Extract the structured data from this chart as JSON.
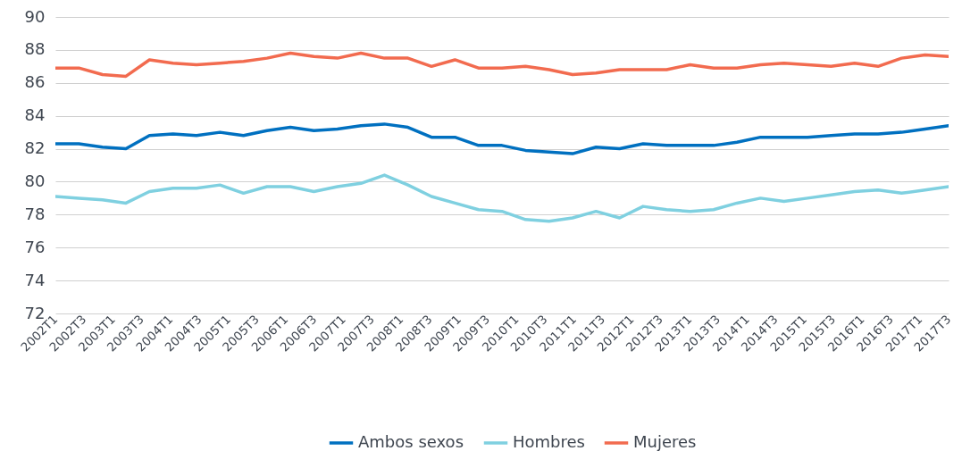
{
  "chart_data": {
    "type": "line",
    "xlim": [
      "2002-01",
      "2017-07"
    ],
    "xticks": [
      {
        "value": "2002-01",
        "label": "2002T1"
      },
      {
        "value": "2002-07",
        "label": "2002T3"
      },
      {
        "value": "2003-01",
        "label": "2003T1"
      },
      {
        "value": "2003-07",
        "label": "2003T3"
      },
      {
        "value": "2004-01",
        "label": "2004T1"
      },
      {
        "value": "2004-07",
        "label": "2004T3"
      },
      {
        "value": "2005-01",
        "label": "2005T1"
      },
      {
        "value": "2005-07",
        "label": "2005T3"
      },
      {
        "value": "2006-01",
        "label": "2006T1"
      },
      {
        "value": "2006-07",
        "label": "2006T3"
      },
      {
        "value": "2007-01",
        "label": "2007T1"
      },
      {
        "value": "2007-07",
        "label": "2007T3"
      },
      {
        "value": "2008-01",
        "label": "2008T1"
      },
      {
        "value": "2008-07",
        "label": "2008T3"
      },
      {
        "value": "2009-01",
        "label": "2009T1"
      },
      {
        "value": "2009-07",
        "label": "2009T3"
      },
      {
        "value": "2010-01",
        "label": "2010T1"
      },
      {
        "value": "2010-07",
        "label": "2010T3"
      },
      {
        "value": "2011-01",
        "label": "2011T1"
      },
      {
        "value": "2011-07",
        "label": "2011T3"
      },
      {
        "value": "2012-01",
        "label": "2012T1"
      },
      {
        "value": "2012-07",
        "label": "2012T3"
      },
      {
        "value": "2013-01",
        "label": "2013T1"
      },
      {
        "value": "2013-07",
        "label": "2013T3"
      },
      {
        "value": "2014-01",
        "label": "2014T1"
      },
      {
        "value": "2014-07",
        "label": "2014T3"
      },
      {
        "value": "2015-01",
        "label": "2015T1"
      },
      {
        "value": "2015-07",
        "label": "2015T3"
      },
      {
        "value": "2016-01",
        "label": "2016T1"
      },
      {
        "value": "2016-07",
        "label": "2016T3"
      },
      {
        "value": "2017-01",
        "label": "2017T1"
      },
      {
        "value": "2017-07",
        "label": "2017T3"
      }
    ],
    "x": [
      "2002-01-01",
      "2002-05-30",
      "2002-10-26",
      "2003-03-24",
      "2003-08-20",
      "2004-01-16",
      "2004-06-13",
      "2004-11-09",
      "2005-04-07",
      "2005-09-03",
      "2006-01-29",
      "2006-06-27",
      "2006-11-23",
      "2007-04-21",
      "2007-09-17",
      "2008-02-13",
      "2008-07-11",
      "2008-12-07",
      "2009-05-05",
      "2009-10-01",
      "2010-02-27",
      "2010-07-26",
      "2010-12-22",
      "2011-05-20",
      "2011-10-16",
      "2012-03-13",
      "2012-08-09",
      "2013-01-05",
      "2013-06-03",
      "2013-10-29",
      "2014-03-27",
      "2014-08-23",
      "2015-01-19",
      "2015-06-17",
      "2015-11-13",
      "2016-04-10",
      "2016-09-06",
      "2017-02-02",
      "2017-07-01"
    ],
    "ylim": [
      72,
      90
    ],
    "yticks": [
      72,
      74,
      76,
      78,
      80,
      82,
      84,
      86,
      88,
      90
    ],
    "grid": "y",
    "legend": "bottom",
    "series": [
      {
        "name": "Ambos sexos",
        "color": "#0070c0",
        "values": [
          82.3,
          82.3,
          82.1,
          82.0,
          82.8,
          82.9,
          82.8,
          83.0,
          82.8,
          83.1,
          83.3,
          83.1,
          83.2,
          83.4,
          83.5,
          83.3,
          82.7,
          82.7,
          82.2,
          82.2,
          81.9,
          81.8,
          81.7,
          82.1,
          82.0,
          82.3,
          82.2,
          82.2,
          82.2,
          82.4,
          82.7,
          82.7,
          82.7,
          82.8,
          82.9,
          82.9,
          83.0,
          83.2,
          83.4
        ]
      },
      {
        "name": "Hombres",
        "color": "#7fd0e0",
        "values": [
          79.1,
          79.0,
          78.9,
          78.7,
          79.4,
          79.6,
          79.6,
          79.8,
          79.3,
          79.7,
          79.7,
          79.4,
          79.7,
          79.9,
          80.4,
          79.8,
          79.1,
          78.7,
          78.3,
          78.2,
          77.7,
          77.6,
          77.8,
          78.2,
          77.8,
          78.5,
          78.3,
          78.2,
          78.3,
          78.7,
          79.0,
          78.8,
          79.0,
          79.2,
          79.4,
          79.5,
          79.3,
          79.5,
          79.7
        ]
      },
      {
        "name": "Mujeres",
        "color": "#f26b4f",
        "values": [
          86.9,
          86.9,
          86.5,
          86.4,
          87.4,
          87.2,
          87.1,
          87.2,
          87.3,
          87.5,
          87.8,
          87.6,
          87.5,
          87.8,
          87.5,
          87.5,
          87.0,
          87.4,
          86.9,
          86.9,
          87.0,
          86.8,
          86.5,
          86.6,
          86.8,
          86.8,
          86.8,
          87.1,
          86.9,
          86.9,
          87.1,
          87.2,
          87.1,
          87.0,
          87.2,
          87.0,
          87.5,
          87.7,
          87.6
        ]
      }
    ]
  }
}
